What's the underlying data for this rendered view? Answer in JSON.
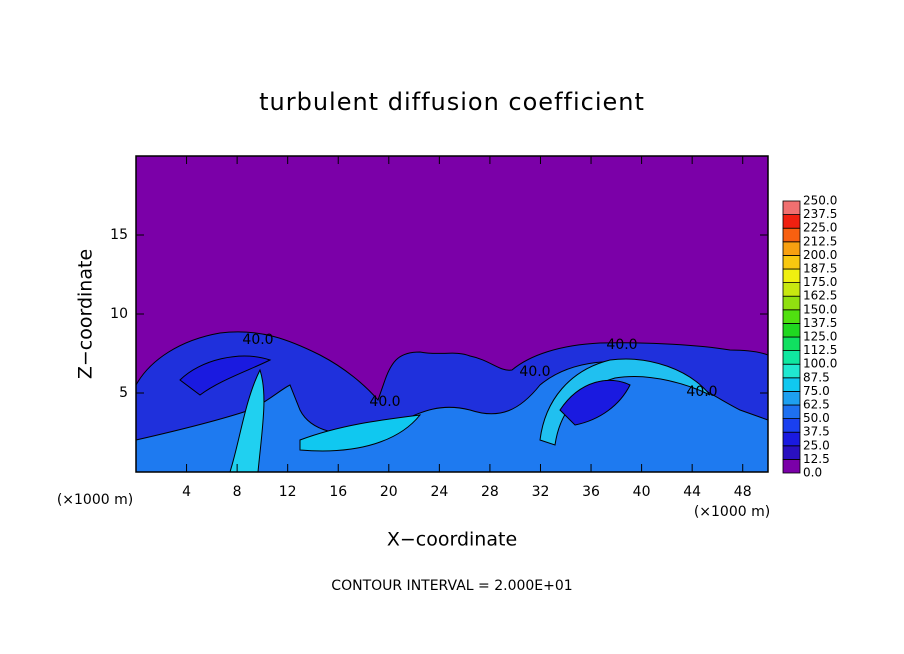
{
  "chart_data": {
    "type": "contour",
    "title": "turbulent diffusion coefficient",
    "xlabel": "X−coordinate",
    "ylabel": "Z−coordinate",
    "x_unit_left": "(×1000 m)",
    "x_unit_right": "(×1000 m)",
    "footer": "CONTOUR INTERVAL = 2.000E+01",
    "xlim": [
      0,
      50
    ],
    "ylim": [
      0,
      20
    ],
    "xticks": [
      4,
      8,
      12,
      16,
      20,
      24,
      28,
      32,
      36,
      40,
      44,
      48
    ],
    "yticks": [
      5,
      10,
      15
    ],
    "contour_labels": [
      "40.0",
      "40.0",
      "40.0",
      "40.0",
      "40.0"
    ],
    "colorbar": {
      "ticks": [
        {
          "value": 0,
          "label": "0.0"
        },
        {
          "value": 12.5,
          "label": "12.5"
        },
        {
          "value": 25,
          "label": "25.0"
        },
        {
          "value": 37.5,
          "label": "37.5"
        },
        {
          "value": 50,
          "label": "50.0"
        },
        {
          "value": 62.5,
          "label": "62.5"
        },
        {
          "value": 75,
          "label": "75.0"
        },
        {
          "value": 87.5,
          "label": "87.5"
        },
        {
          "value": 100,
          "label": "100.0"
        },
        {
          "value": 112.5,
          "label": "112.5"
        },
        {
          "value": 125,
          "label": "125.0"
        },
        {
          "value": 137.5,
          "label": "137.5"
        },
        {
          "value": 150,
          "label": "150.0"
        },
        {
          "value": 162.5,
          "label": "162.5"
        },
        {
          "value": 175,
          "label": "175.0"
        },
        {
          "value": 187.5,
          "label": "187.5"
        },
        {
          "value": 200,
          "label": "200.0"
        },
        {
          "value": 212.5,
          "label": "212.5"
        },
        {
          "value": 225,
          "label": "225.0"
        },
        {
          "value": 237.5,
          "label": "237.5"
        },
        {
          "value": 250,
          "label": "250.0"
        }
      ],
      "colors": [
        "#7a00a8",
        "#2a10c0",
        "#1a1ae0",
        "#1a40f0",
        "#1e70f0",
        "#1ea0f0",
        "#10c8f0",
        "#20e8d0",
        "#10e8a0",
        "#10e060",
        "#20d820",
        "#50e010",
        "#90e010",
        "#c8e810",
        "#f0f010",
        "#f8c810",
        "#f8a010",
        "#f86010",
        "#f02010",
        "#f07070"
      ]
    }
  }
}
